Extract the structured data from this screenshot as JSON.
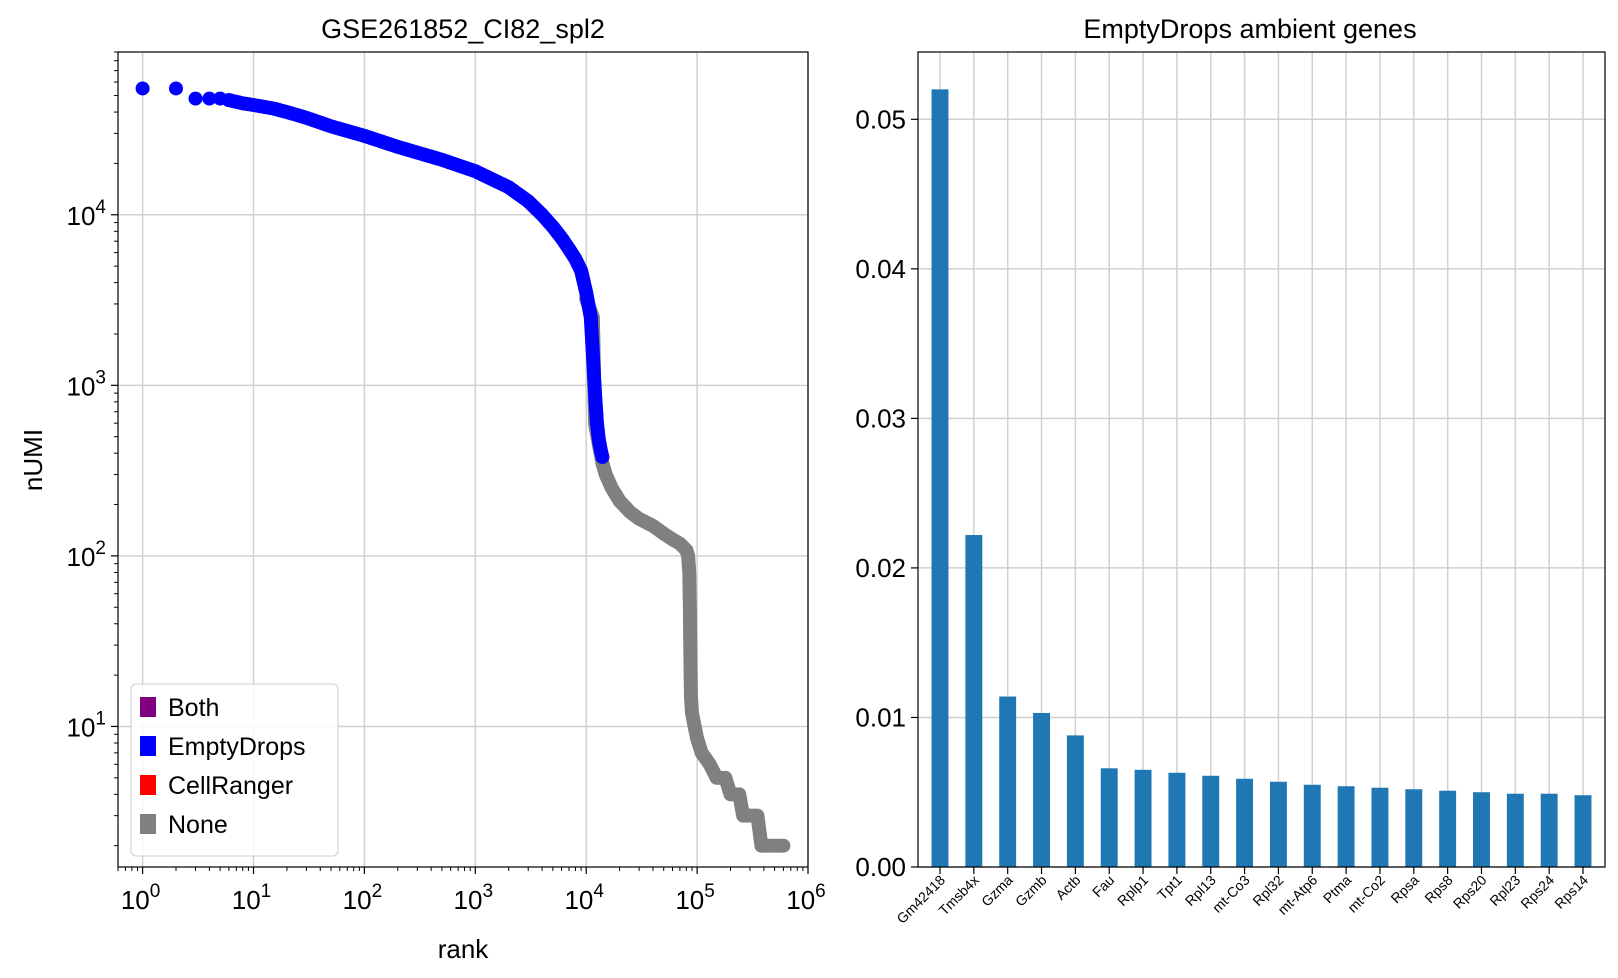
{
  "chart_data": [
    {
      "type": "scatter",
      "title": "GSE261852_CI82_spl2",
      "xlabel": "rank",
      "ylabel": "nUMI",
      "xscale": "log",
      "yscale": "log",
      "xlim": [
        0.6,
        1000000
      ],
      "ylim": [
        1.5,
        90000
      ],
      "x_ticks": [
        {
          "value": 1,
          "base": "10",
          "exp": "0"
        },
        {
          "value": 10,
          "base": "10",
          "exp": "1"
        },
        {
          "value": 100,
          "base": "10",
          "exp": "2"
        },
        {
          "value": 1000,
          "base": "10",
          "exp": "3"
        },
        {
          "value": 10000,
          "base": "10",
          "exp": "4"
        },
        {
          "value": 100000,
          "base": "10",
          "exp": "5"
        },
        {
          "value": 1000000,
          "base": "10",
          "exp": "6"
        }
      ],
      "y_ticks": [
        {
          "value": 10,
          "base": "10",
          "exp": "1"
        },
        {
          "value": 100,
          "base": "10",
          "exp": "2"
        },
        {
          "value": 1000,
          "base": "10",
          "exp": "3"
        },
        {
          "value": 10000,
          "base": "10",
          "exp": "4"
        }
      ],
      "grid": true,
      "legend_position": "bottom-left",
      "legend": [
        {
          "label": "Both",
          "color": "#800080"
        },
        {
          "label": "EmptyDrops",
          "color": "#0000ff"
        },
        {
          "label": "CellRanger",
          "color": "#ff0000"
        },
        {
          "label": "None",
          "color": "#808080"
        }
      ],
      "series": [
        {
          "name": "EmptyDrops",
          "color": "#0000ff",
          "points": [
            [
              1,
              55000
            ],
            [
              2,
              55000
            ],
            [
              3,
              48000
            ],
            [
              4,
              48000
            ],
            [
              5,
              48000
            ],
            [
              6,
              47000
            ],
            [
              8,
              45000
            ],
            [
              10,
              44000
            ],
            [
              15,
              42000
            ],
            [
              20,
              40000
            ],
            [
              30,
              37000
            ],
            [
              50,
              33000
            ],
            [
              100,
              29000
            ],
            [
              200,
              25000
            ],
            [
              500,
              21000
            ],
            [
              1000,
              18000
            ],
            [
              2000,
              14500
            ],
            [
              3000,
              12000
            ],
            [
              4000,
              10000
            ],
            [
              5000,
              8500
            ],
            [
              6000,
              7300
            ],
            [
              7000,
              6300
            ],
            [
              8000,
              5500
            ],
            [
              9000,
              4700
            ],
            [
              10000,
              3500
            ],
            [
              11000,
              2500
            ],
            [
              11500,
              1500
            ],
            [
              12000,
              900
            ],
            [
              12500,
              600
            ],
            [
              13000,
              480
            ],
            [
              13500,
              420
            ],
            [
              14000,
              380
            ]
          ]
        },
        {
          "name": "None",
          "color": "#808080",
          "points": [
            [
              10000,
              3200
            ],
            [
              11500,
              2500
            ],
            [
              12000,
              600
            ],
            [
              13000,
              450
            ],
            [
              14000,
              350
            ],
            [
              15000,
              300
            ],
            [
              17000,
              250
            ],
            [
              20000,
              210
            ],
            [
              25000,
              180
            ],
            [
              30000,
              165
            ],
            [
              40000,
              150
            ],
            [
              50000,
              135
            ],
            [
              60000,
              125
            ],
            [
              70000,
              118
            ],
            [
              80000,
              108
            ],
            [
              83000,
              100
            ],
            [
              85000,
              80
            ],
            [
              86000,
              50
            ],
            [
              87000,
              25
            ],
            [
              88000,
              15
            ],
            [
              90000,
              12
            ],
            [
              95000,
              10
            ],
            [
              100000,
              8.5
            ],
            [
              110000,
              7
            ],
            [
              130000,
              6
            ],
            [
              150000,
              5
            ],
            [
              180000,
              5
            ],
            [
              200000,
              4
            ],
            [
              240000,
              4
            ],
            [
              260000,
              3
            ],
            [
              300000,
              3
            ],
            [
              350000,
              3
            ],
            [
              380000,
              2
            ],
            [
              420000,
              2
            ],
            [
              500000,
              2
            ],
            [
              600000,
              2
            ]
          ]
        }
      ]
    },
    {
      "type": "bar",
      "title": "EmptyDrops ambient genes",
      "xlabel": "",
      "ylabel": "",
      "ylim": [
        0,
        0.0545
      ],
      "y_ticks": [
        "0.00",
        "0.01",
        "0.02",
        "0.03",
        "0.04",
        "0.05"
      ],
      "grid": true,
      "color": "#1f77b4",
      "categories": [
        "Gm42418",
        "Tmsb4x",
        "Gzma",
        "Gzmb",
        "Actb",
        "Fau",
        "Rplp1",
        "Tpt1",
        "Rpl13",
        "mt-Co3",
        "Rpl32",
        "mt-Atp6",
        "Ptma",
        "mt-Co2",
        "Rpsa",
        "Rps8",
        "Rps20",
        "Rpl23",
        "Rps24",
        "Rps14"
      ],
      "values": [
        0.052,
        0.0222,
        0.0114,
        0.0103,
        0.0088,
        0.0066,
        0.0065,
        0.0063,
        0.0061,
        0.0059,
        0.0057,
        0.0055,
        0.0054,
        0.0053,
        0.0052,
        0.0051,
        0.005,
        0.0049,
        0.0049,
        0.0048
      ]
    }
  ]
}
